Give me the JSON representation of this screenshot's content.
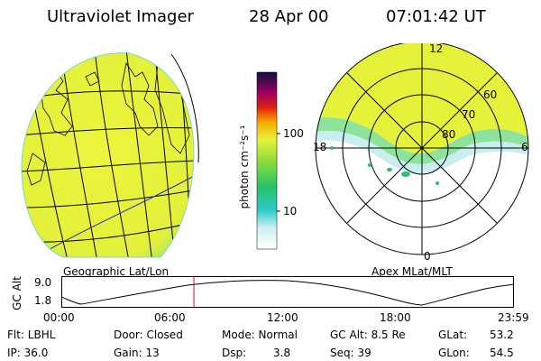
{
  "header": {
    "instrument": "Ultraviolet Imager",
    "date": "28 Apr 00",
    "time": "07:01:42 UT"
  },
  "left_panel": {
    "caption": "Geographic Lat/Lon"
  },
  "right_panel": {
    "caption": "Apex MLat/MLT",
    "mlt_labels": {
      "top": "12",
      "left": "18",
      "right": "6",
      "bottom": "0"
    },
    "lat_labels": [
      "60",
      "70",
      "80"
    ]
  },
  "colorbar": {
    "unit_label": "photon cm⁻²s⁻¹",
    "ticks": [
      "100",
      "10"
    ]
  },
  "altitude_plot": {
    "ylabel": "GC Alt",
    "ytick_top": "9.0",
    "ytick_bottom": "1.8",
    "xticks": [
      "00:00",
      "06:00",
      "12:00",
      "18:00",
      "23:59"
    ],
    "current_time_hours": 7.03
  },
  "info": {
    "flt": "Flt: LBHL",
    "door": "Door: Closed",
    "mode": "Mode: Normal",
    "gc_alt": "GC Alt: 8.5 Re",
    "glat_label": "GLat:",
    "glat_value": "53.2",
    "ip": "IP: 36.0",
    "gain": "Gain: 13",
    "dsp_label": "Dsp:",
    "dsp_value": "3.8",
    "seq": "Seq: 39",
    "glon_label": "GLon:",
    "glon_value": "54.5"
  },
  "colors": {
    "globe_fill": "#e8f23a",
    "globe_edge": "#9adf6a",
    "globe_rim": "#6fd3c3",
    "grid_line": "#000000",
    "time_marker": "#d01010"
  }
}
